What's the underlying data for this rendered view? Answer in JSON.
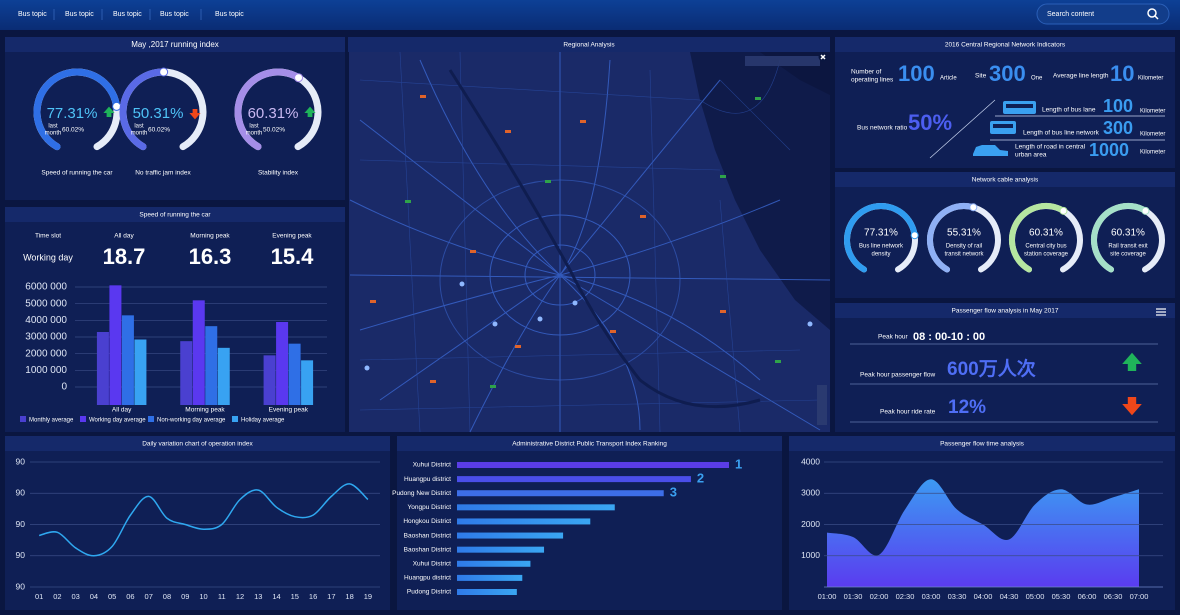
{
  "nav": {
    "tabs": [
      "Bus topic",
      "Bus topic",
      "Bus topic",
      "Bus topic",
      "Bus topic"
    ],
    "search": "Search content"
  },
  "running_index": {
    "title": "May ,2017 running index",
    "last_month": [
      "last",
      "month"
    ],
    "gauges": [
      {
        "value": 77.31,
        "label": "77.31%",
        "trend": "up",
        "last_month_value": "60.02%",
        "name": "Speed of running the car",
        "color": "#2f6fe6",
        "text_color": "#4fc3f7"
      },
      {
        "value": 50.31,
        "label": "50.31%",
        "trend": "down",
        "last_month_value": "60.02%",
        "name": "No traffic jam index",
        "color": "#5a6ae6",
        "text_color": "#4fc3f7"
      },
      {
        "value": 60.31,
        "label": "60.31%",
        "trend": "up",
        "last_month_value": "50.02%",
        "name": "Stability index",
        "color": "#a58ee8",
        "text_color": "#c9b8f2"
      }
    ]
  },
  "car_speed": {
    "title": "Speed of running the car",
    "table": {
      "header": [
        "Time slot",
        "All day",
        "Morning peak",
        "Evening peak"
      ],
      "rows": [
        [
          "Working day",
          "18.7",
          "16.3",
          "15.4"
        ]
      ]
    },
    "chart_data": {
      "type": "bar",
      "categories": [
        "All day",
        "Morning peak",
        "Evening peak"
      ],
      "series": [
        {
          "name": "Monthly average",
          "color": "#4a40d0",
          "values": [
            3300000,
            2750000,
            1900000
          ]
        },
        {
          "name": "Working day average",
          "color": "#5a38f0",
          "values": [
            6100000,
            5200000,
            3900000
          ]
        },
        {
          "name": "Non-working day average",
          "color": "#2f6fe6",
          "values": [
            4300000,
            3650000,
            2600000
          ]
        },
        {
          "name": "Holiday average",
          "color": "#38a2f2",
          "values": [
            2850000,
            2350000,
            1600000
          ]
        }
      ],
      "ylim": [
        -1080000,
        6000000
      ],
      "yticks": [
        0,
        {
          "value": 1000000,
          "label": "1000 000"
        },
        {
          "value": 2000000,
          "label": "2000 000"
        },
        {
          "value": 3000000,
          "label": "3000 000"
        },
        {
          "value": 4000000,
          "label": "4000 000"
        },
        {
          "value": 5000000,
          "label": "5000 000"
        },
        {
          "value": 6000000,
          "label": "6000 000"
        }
      ],
      "grid": true
    }
  },
  "map": {
    "title": "Regional Analysis"
  },
  "network": {
    "title": "2016 Central Regional Network Indicators",
    "top": [
      {
        "label": [
          "Number of",
          "operating lines"
        ],
        "value": "100",
        "unit": "Article"
      },
      {
        "label": [
          "Site"
        ],
        "value": "300",
        "unit": "One"
      },
      {
        "label": [
          "Average line length"
        ],
        "value": "10",
        "unit": "Kilometer"
      }
    ],
    "ratio": {
      "label": "Bus network ratio",
      "value": "50%"
    },
    "lengths": [
      {
        "label": [
          "Length of bus lane"
        ],
        "value": "100",
        "unit": "Kilometer"
      },
      {
        "label": [
          "Length of bus line network"
        ],
        "value": "300",
        "unit": "Kilometer"
      },
      {
        "label": [
          "Length of road in central",
          "urban area"
        ],
        "value": "1000",
        "unit": "Kilometer"
      }
    ]
  },
  "cable": {
    "title": "Network cable analysis",
    "gauges": [
      {
        "value": 77.31,
        "label": "77.31%",
        "name": [
          "Bus line network",
          "density"
        ],
        "color": "#2f9cf0"
      },
      {
        "value": 55.31,
        "label": "55.31%",
        "name": [
          "Density of rail",
          "transit network"
        ],
        "color": "#8fb0f5"
      },
      {
        "value": 60.31,
        "label": "60.31%",
        "name": [
          "Central city bus",
          "station coverage"
        ],
        "color": "#b5e6a0"
      },
      {
        "value": 60.31,
        "label": "60.31%",
        "name": [
          "Rail transit exit",
          "site coverage"
        ],
        "color": "#a5e0c8"
      }
    ]
  },
  "passenger": {
    "title": "Passenger flow analysis in May 2017",
    "peak_hour": {
      "label": "Peak hour",
      "value": "08 : 00-10 : 00"
    },
    "flow": {
      "label": "Peak hour passenger flow",
      "value": "600万人次",
      "trend": "up"
    },
    "ride_rate": {
      "label": "Peak hour ride rate",
      "value": "12%",
      "trend": "down"
    }
  },
  "daily": {
    "title": "Daily variation chart of operation index",
    "chart_data": {
      "type": "line",
      "categories": [
        "01",
        "02",
        "03",
        "04",
        "05",
        "06",
        "07",
        "08",
        "09",
        "10",
        "11",
        "12",
        "13",
        "14",
        "15",
        "16",
        "17",
        "18",
        "19"
      ],
      "values": [
        89.93,
        89.95,
        89.85,
        89.8,
        89.86,
        90.06,
        90.18,
        90.04,
        90.0,
        89.97,
        90.0,
        90.16,
        90.22,
        90.11,
        90.05,
        90.06,
        90.18,
        90.26,
        90.16
      ],
      "color": "#2fa8f0",
      "ylim": [
        89.6,
        90.4
      ],
      "yticks": [
        {
          "value": 89.6,
          "label": "90"
        },
        {
          "value": 89.8,
          "label": "90"
        },
        90,
        {
          "value": 90.2,
          "label": "90"
        },
        {
          "value": 90.4,
          "label": "90"
        }
      ],
      "grid": true
    }
  },
  "ranking": {
    "title": "Administrative District Public Transport Index Ranking",
    "chart_data": {
      "type": "hbar",
      "categories": [
        "Xuhui District",
        "Huangpu district",
        "Pudong New District",
        "Yongpu District",
        "Hongkou District",
        "Baoshan District",
        "Baoshan District",
        "Xuhui District",
        "Huangpu district",
        "Pudong District"
      ],
      "values": [
        100,
        86,
        76,
        58,
        49,
        39,
        32,
        27,
        24,
        22
      ],
      "ranks": [
        "1",
        "2",
        "3"
      ],
      "xlim": [
        0,
        100
      ]
    }
  },
  "flow_time": {
    "title": "Passenger flow time analysis",
    "chart_data": {
      "type": "area",
      "categories": [
        "01:00",
        "01:30",
        "02:00",
        "02:30",
        "03:00",
        "03:30",
        "04:00",
        "04:30",
        "05:00",
        "05:30",
        "06:00",
        "06:30",
        "07:00"
      ],
      "values": [
        1740,
        1600,
        1030,
        2480,
        3450,
        2480,
        2000,
        1520,
        2640,
        3130,
        2640,
        2870,
        3130
      ],
      "ylim": [
        0,
        4000
      ],
      "yticks": [
        1000,
        2000,
        3000,
        4000
      ],
      "grid": true
    }
  }
}
